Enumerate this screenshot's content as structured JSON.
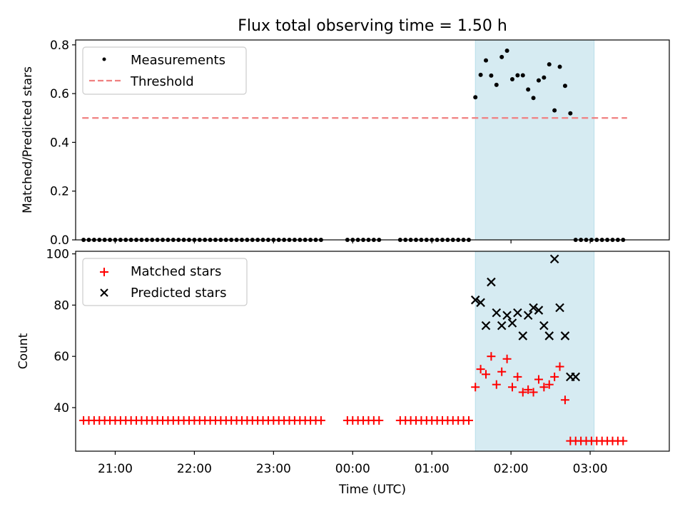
{
  "title": "Flux total observing time = 1.50 h",
  "chart_data": [
    {
      "type": "scatter",
      "panel": "top",
      "ylabel": "Matched/Predicted stars",
      "xlabel": "",
      "ylim": [
        0,
        0.82
      ],
      "yticks": [
        0.0,
        0.2,
        0.4,
        0.6,
        0.8
      ],
      "ytick_labels": [
        "0.0",
        "0.2",
        "0.4",
        "0.6",
        "0.8"
      ],
      "legend": {
        "placement": "top-left",
        "entries": [
          "Measurements",
          "Threshold"
        ]
      },
      "threshold": {
        "name": "Threshold",
        "value": 0.5,
        "x_start": "20:35",
        "x_end": "03:28",
        "color": "#f08080",
        "style": "dashed"
      },
      "shaded_region": {
        "x_start": "01:33",
        "x_end": "03:03",
        "color": "#add8e6"
      },
      "series": [
        {
          "name": "Measurements",
          "color": "#000000",
          "marker": "dot",
          "x": [
            "20:36",
            "20:40",
            "20:44",
            "20:48",
            "20:52",
            "20:56",
            "21:00",
            "21:04",
            "21:08",
            "21:12",
            "21:16",
            "21:20",
            "21:24",
            "21:28",
            "21:32",
            "21:36",
            "21:40",
            "21:44",
            "21:48",
            "21:52",
            "21:56",
            "22:00",
            "22:04",
            "22:08",
            "22:12",
            "22:16",
            "22:20",
            "22:24",
            "22:28",
            "22:32",
            "22:36",
            "22:40",
            "22:44",
            "22:48",
            "22:52",
            "22:56",
            "23:00",
            "23:04",
            "23:08",
            "23:12",
            "23:16",
            "23:20",
            "23:24",
            "23:28",
            "23:32",
            "23:36",
            "23:56",
            "24:00",
            "24:04",
            "24:08",
            "24:12",
            "24:16",
            "24:20",
            "24:36",
            "24:40",
            "24:44",
            "24:48",
            "24:52",
            "24:56",
            "25:00",
            "25:04",
            "25:08",
            "25:12",
            "25:16",
            "25:20",
            "25:24",
            "25:28",
            "25:33",
            "25:37",
            "25:41",
            "25:45",
            "25:49",
            "25:53",
            "25:57",
            "26:01",
            "26:05",
            "26:09",
            "26:13",
            "26:17",
            "26:21",
            "26:25",
            "26:29",
            "26:33",
            "26:37",
            "26:41",
            "26:45",
            "26:49",
            "26:53",
            "26:57",
            "27:01",
            "27:05",
            "27:09",
            "27:13",
            "27:17",
            "27:21",
            "27:25"
          ],
          "y": [
            0,
            0,
            0,
            0,
            0,
            0,
            0,
            0,
            0,
            0,
            0,
            0,
            0,
            0,
            0,
            0,
            0,
            0,
            0,
            0,
            0,
            0,
            0,
            0,
            0,
            0,
            0,
            0,
            0,
            0,
            0,
            0,
            0,
            0,
            0,
            0,
            0,
            0,
            0,
            0,
            0,
            0,
            0,
            0,
            0,
            0,
            0,
            0,
            0,
            0,
            0,
            0,
            0,
            0,
            0,
            0,
            0,
            0,
            0,
            0,
            0,
            0,
            0,
            0,
            0,
            0,
            0,
            0.585,
            0.677,
            0.736,
            0.674,
            0.636,
            0.75,
            0.776,
            0.659,
            0.675,
            0.675,
            0.617,
            0.582,
            0.654,
            0.666,
            0.72,
            0.531,
            0.71,
            0.632,
            0.519,
            0,
            0,
            0,
            0,
            0,
            0,
            0,
            0,
            0,
            0
          ]
        }
      ],
      "points_on_x": "x values are clock times (UTC); values past 24:00 are the following day"
    },
    {
      "type": "scatter",
      "panel": "bottom",
      "ylabel": "Count",
      "xlabel": "Time (UTC)",
      "ylim": [
        23,
        101
      ],
      "yticks": [
        40,
        60,
        80,
        100
      ],
      "ytick_labels": [
        "40",
        "60",
        "80",
        "100"
      ],
      "xtick_labels": [
        "21:00",
        "22:00",
        "23:00",
        "00:00",
        "01:00",
        "02:00",
        "03:00"
      ],
      "legend": {
        "placement": "top-left",
        "entries": [
          "Matched stars",
          "Predicted stars"
        ]
      },
      "shaded_region": {
        "x_start": "01:33",
        "x_end": "03:03",
        "color": "#add8e6"
      },
      "series": [
        {
          "name": "Matched stars",
          "color": "#ff0000",
          "marker": "plus",
          "x": [
            "20:36",
            "20:40",
            "20:44",
            "20:48",
            "20:52",
            "20:56",
            "21:00",
            "21:04",
            "21:08",
            "21:12",
            "21:16",
            "21:20",
            "21:24",
            "21:28",
            "21:32",
            "21:36",
            "21:40",
            "21:44",
            "21:48",
            "21:52",
            "21:56",
            "22:00",
            "22:04",
            "22:08",
            "22:12",
            "22:16",
            "22:20",
            "22:24",
            "22:28",
            "22:32",
            "22:36",
            "22:40",
            "22:44",
            "22:48",
            "22:52",
            "22:56",
            "23:00",
            "23:04",
            "23:08",
            "23:12",
            "23:16",
            "23:20",
            "23:24",
            "23:28",
            "23:32",
            "23:36",
            "23:56",
            "24:00",
            "24:04",
            "24:08",
            "24:12",
            "24:16",
            "24:20",
            "24:36",
            "24:40",
            "24:44",
            "24:48",
            "24:52",
            "24:56",
            "25:00",
            "25:04",
            "25:08",
            "25:12",
            "25:16",
            "25:20",
            "25:24",
            "25:28",
            "25:33",
            "25:37",
            "25:41",
            "25:45",
            "25:49",
            "25:53",
            "25:57",
            "26:01",
            "26:05",
            "26:09",
            "26:13",
            "26:17",
            "26:21",
            "26:25",
            "26:29",
            "26:33",
            "26:37",
            "26:41",
            "26:45",
            "26:49",
            "26:53",
            "26:57",
            "27:01",
            "27:05",
            "27:09",
            "27:13",
            "27:17",
            "27:21",
            "27:25"
          ],
          "y": [
            35,
            35,
            35,
            35,
            35,
            35,
            35,
            35,
            35,
            35,
            35,
            35,
            35,
            35,
            35,
            35,
            35,
            35,
            35,
            35,
            35,
            35,
            35,
            35,
            35,
            35,
            35,
            35,
            35,
            35,
            35,
            35,
            35,
            35,
            35,
            35,
            35,
            35,
            35,
            35,
            35,
            35,
            35,
            35,
            35,
            35,
            35,
            35,
            35,
            35,
            35,
            35,
            35,
            35,
            35,
            35,
            35,
            35,
            35,
            35,
            35,
            35,
            35,
            35,
            35,
            35,
            35,
            48,
            55,
            53,
            60,
            49,
            54,
            59,
            48,
            52,
            46,
            47,
            46,
            51,
            48,
            49,
            52,
            56,
            43,
            27,
            27,
            27,
            27,
            27,
            27,
            27,
            27,
            27,
            27,
            27
          ]
        },
        {
          "name": "Predicted stars",
          "color": "#000000",
          "marker": "x",
          "x": [
            "25:33",
            "25:37",
            "25:41",
            "25:45",
            "25:49",
            "25:53",
            "25:57",
            "26:01",
            "26:05",
            "26:09",
            "26:13",
            "26:17",
            "26:21",
            "26:25",
            "26:29",
            "26:33",
            "26:37",
            "26:41",
            "26:45",
            "26:49"
          ],
          "y": [
            82,
            81,
            72,
            89,
            77,
            72,
            76,
            73,
            77,
            68,
            76,
            79,
            78,
            72,
            68,
            98,
            79,
            68,
            52,
            52
          ]
        }
      ]
    }
  ]
}
